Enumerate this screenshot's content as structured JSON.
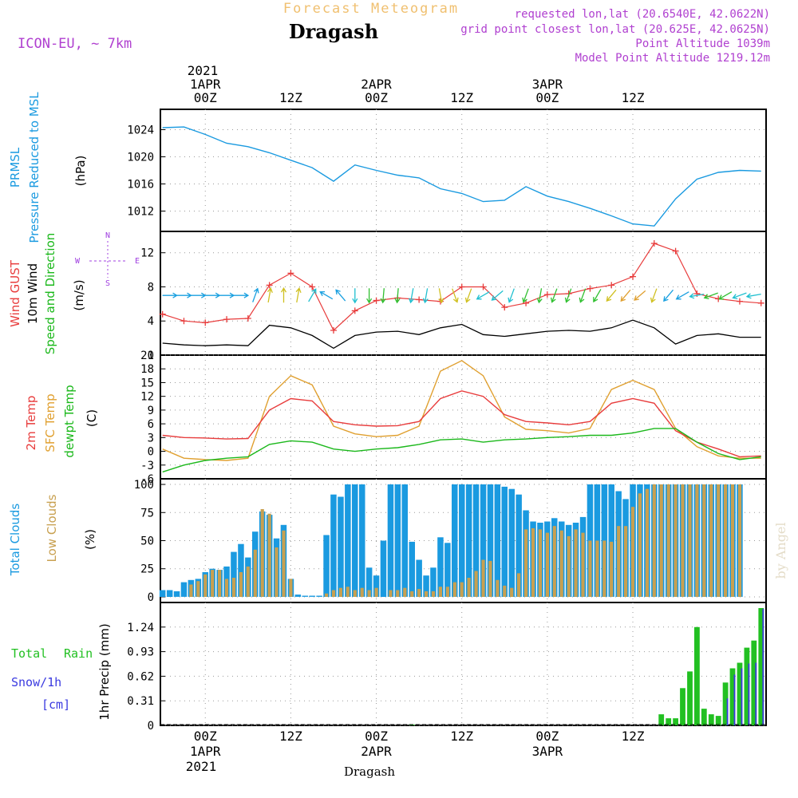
{
  "header": {
    "super_title": "Forecast Meteogram",
    "location": "Dragash",
    "model": "ICON-EU, ~ 7km",
    "requested": "requested lon,lat (20.6540E, 42.0622N)",
    "grid_point": "grid point closest lon,lat (20.625E, 42.0625N)",
    "point_alt": "Point Altitude 1039m",
    "model_alt": "Model Point Altitude 1219.12m"
  },
  "top_axis": {
    "year": "2021",
    "labels": [
      {
        "date": "1APR",
        "hour": "00Z"
      },
      {
        "date": "",
        "hour": "12Z"
      },
      {
        "date": "2APR",
        "hour": "00Z"
      },
      {
        "date": "",
        "hour": "12Z"
      },
      {
        "date": "3APR",
        "hour": "00Z"
      },
      {
        "date": "",
        "hour": "12Z"
      }
    ]
  },
  "bottom_axis": {
    "year": "2021",
    "labels": [
      {
        "hour": "00Z",
        "date": "1APR"
      },
      {
        "hour": "12Z",
        "date": ""
      },
      {
        "hour": "00Z",
        "date": "2APR"
      },
      {
        "hour": "12Z",
        "date": ""
      },
      {
        "hour": "00Z",
        "date": "3APR"
      },
      {
        "hour": "12Z",
        "date": ""
      }
    ],
    "footer": "Dragash"
  },
  "watermark": "by Angel",
  "colors": {
    "pressure": "#1a9ae0",
    "gust": "#e83c3c",
    "wind": "#000000",
    "dir": "#1bb81b",
    "t2m": "#e83c3c",
    "sfc": "#e0a030",
    "dew": "#1bb81b",
    "total_cloud": "#1a9ae0",
    "low_cloud": "#c8a050",
    "rain": "#22c022",
    "snow": "#3a3ae0",
    "compass": "#a040e0",
    "header_meta": "#b040d0",
    "super_title": "#f0c070"
  },
  "chart_data": [
    {
      "id": "pressure",
      "type": "line",
      "ylabel_lines": [
        "PRMSL",
        "Pressure Reduced to MSL"
      ],
      "unit": "(hPa)",
      "ylim": [
        1009,
        1027
      ],
      "yticks": [
        1012,
        1016,
        1020,
        1024
      ],
      "x_hours": [
        -6,
        -3,
        0,
        3,
        6,
        9,
        12,
        15,
        18,
        21,
        24,
        27,
        30,
        33,
        36,
        39,
        42,
        45,
        48,
        51,
        54,
        57,
        60,
        63,
        66,
        69,
        72,
        75,
        78
      ],
      "series": [
        {
          "name": "PRMSL",
          "values": [
            1024.3,
            1024.4,
            1023.3,
            1022.0,
            1021.5,
            1020.6,
            1019.5,
            1018.4,
            1016.4,
            1018.8,
            1018.0,
            1017.3,
            1016.9,
            1015.3,
            1014.6,
            1013.4,
            1013.6,
            1015.6,
            1014.2,
            1013.4,
            1012.4,
            1011.3,
            1010.1,
            1009.8,
            1013.8,
            1016.7,
            1017.7,
            1018.0,
            1017.9
          ]
        }
      ]
    },
    {
      "id": "wind",
      "type": "line",
      "ylabel_lines": [
        "Wind GUST",
        "10m Wind",
        "Speed and Direction"
      ],
      "unit": "(m/s)",
      "compass": [
        "N",
        "W",
        "E",
        "S"
      ],
      "ylim": [
        0,
        14.5
      ],
      "yticks": [
        0,
        4,
        8,
        12
      ],
      "x_hours": [
        -6,
        -3,
        0,
        3,
        6,
        9,
        12,
        15,
        18,
        21,
        24,
        27,
        30,
        33,
        36,
        39,
        42,
        45,
        48,
        51,
        54,
        57,
        60,
        63,
        66,
        69,
        72,
        75,
        78
      ],
      "series": [
        {
          "name": "Wind GUST",
          "values": [
            4.8,
            4.0,
            3.8,
            4.2,
            4.3,
            8.2,
            9.6,
            8.0,
            2.9,
            5.2,
            6.4,
            6.7,
            6.5,
            6.3,
            8.0,
            8.0,
            5.6,
            6.1,
            7.1,
            7.2,
            7.8,
            8.2,
            9.2,
            13.1,
            12.2,
            7.2,
            6.6,
            6.3,
            6.1
          ]
        },
        {
          "name": "10m Wind",
          "values": [
            1.4,
            1.2,
            1.1,
            1.2,
            1.1,
            3.5,
            3.2,
            2.3,
            0.8,
            2.3,
            2.7,
            2.8,
            2.4,
            3.2,
            3.6,
            2.4,
            2.2,
            2.5,
            2.8,
            2.9,
            2.8,
            3.2,
            4.1,
            3.2,
            1.3,
            2.3,
            2.5,
            2.1,
            2.1
          ]
        }
      ],
      "arrows": {
        "hours": [
          -5,
          -3,
          -1,
          1,
          3,
          5,
          7,
          9,
          11,
          13,
          15,
          17,
          19,
          21,
          23,
          25,
          27,
          29,
          31,
          33,
          35,
          37,
          39,
          41,
          43,
          45,
          47,
          49,
          51,
          53,
          55,
          57,
          59,
          61,
          63,
          65,
          67,
          69,
          71,
          73,
          75,
          77
        ],
        "dirs": [
          90,
          90,
          90,
          90,
          90,
          90,
          20,
          10,
          0,
          10,
          30,
          300,
          320,
          180,
          180,
          185,
          185,
          190,
          190,
          170,
          160,
          200,
          240,
          230,
          200,
          200,
          190,
          200,
          200,
          200,
          210,
          220,
          220,
          230,
          200,
          220,
          240,
          260,
          250,
          240,
          250,
          260
        ]
      }
    },
    {
      "id": "temp",
      "type": "line",
      "ylabel_lines": [
        "2m Temp",
        "SFC Temp",
        "dewpt Temp"
      ],
      "unit": "(C)",
      "ylim": [
        -6,
        21
      ],
      "yticks": [
        -6,
        -3,
        0,
        3,
        6,
        9,
        12,
        15,
        18,
        21
      ],
      "x_hours": [
        -6,
        -3,
        0,
        3,
        6,
        9,
        12,
        15,
        18,
        21,
        24,
        27,
        30,
        33,
        36,
        39,
        42,
        45,
        48,
        51,
        54,
        57,
        60,
        63,
        66,
        69,
        72,
        75,
        78
      ],
      "series": [
        {
          "name": "2m Temp",
          "values": [
            3.5,
            3.0,
            2.9,
            2.7,
            2.8,
            9.0,
            11.5,
            11.0,
            6.5,
            5.8,
            5.5,
            5.6,
            6.5,
            11.5,
            13.2,
            12.0,
            8.0,
            6.5,
            6.2,
            5.8,
            6.5,
            10.5,
            11.5,
            10.5,
            4.5,
            2.0,
            0.5,
            -1.2,
            -1.0
          ]
        },
        {
          "name": "SFC Temp",
          "values": [
            0.5,
            -1.5,
            -1.8,
            -2.0,
            -1.5,
            12.0,
            16.5,
            14.5,
            5.5,
            3.8,
            3.2,
            3.5,
            5.5,
            17.5,
            19.8,
            16.5,
            7.5,
            4.8,
            4.5,
            4.0,
            5.0,
            13.5,
            15.5,
            13.5,
            5.0,
            1.0,
            -1.0,
            -1.5,
            -1.5
          ]
        },
        {
          "name": "dewpt Temp",
          "values": [
            -4.5,
            -3.0,
            -2.0,
            -1.5,
            -1.2,
            1.5,
            2.3,
            2.0,
            0.5,
            0.0,
            0.5,
            0.8,
            1.5,
            2.5,
            2.7,
            2.0,
            2.5,
            2.7,
            3.0,
            3.2,
            3.5,
            3.5,
            4.0,
            5.0,
            5.0,
            2.0,
            -0.5,
            -1.8,
            -1.2
          ]
        }
      ]
    },
    {
      "id": "clouds",
      "type": "bar",
      "ylabel_lines": [
        "Total Clouds",
        "Low Clouds"
      ],
      "unit": "(%)",
      "ylim": [
        -5,
        105
      ],
      "yticks": [
        0,
        25,
        50,
        75,
        100
      ],
      "start_hour": -6,
      "step_hours": 1,
      "series": [
        {
          "name": "Total Clouds",
          "values": [
            6,
            6,
            5,
            13,
            15,
            16,
            22,
            25,
            24,
            27,
            40,
            47,
            35,
            58,
            76,
            73,
            52,
            64,
            16,
            2,
            1,
            1,
            1,
            55,
            91,
            89,
            100,
            100,
            100,
            26,
            19,
            50,
            100,
            100,
            100,
            49,
            33,
            19,
            26,
            53,
            48,
            100,
            100,
            100,
            100,
            100,
            100,
            100,
            98,
            96,
            91,
            77,
            67,
            66,
            67,
            70,
            67,
            64,
            66,
            71,
            100,
            100,
            100,
            100,
            94,
            87,
            100,
            100,
            100,
            100,
            100,
            100,
            100,
            100,
            100,
            100,
            100,
            100,
            100,
            100,
            100,
            100
          ]
        },
        {
          "name": "Low Clouds",
          "values": [
            0,
            0,
            0,
            0,
            11,
            14,
            20,
            24,
            24,
            16,
            17,
            22,
            27,
            42,
            78,
            74,
            44,
            59,
            16,
            0,
            0,
            0,
            0,
            3,
            6,
            8,
            9,
            6,
            8,
            6,
            8,
            0,
            6,
            6,
            8,
            5,
            7,
            5,
            5,
            9,
            9,
            13,
            13,
            17,
            23,
            33,
            32,
            15,
            10,
            8,
            21,
            60,
            61,
            60,
            57,
            63,
            59,
            54,
            60,
            57,
            50,
            50,
            50,
            49,
            63,
            63,
            80,
            92,
            96,
            100,
            100,
            100,
            100,
            100,
            100,
            100,
            100,
            100,
            100,
            100,
            100,
            100
          ]
        }
      ]
    },
    {
      "id": "precip",
      "type": "bar",
      "ylabel_lines": [
        "1hr Precip (mm)"
      ],
      "legend": [
        "Total",
        "Rain",
        "Snow/1h",
        "[cm]"
      ],
      "ylim": [
        0,
        1.55
      ],
      "yticks": [
        0,
        0.31,
        0.62,
        0.93,
        1.24
      ],
      "ytick_labels": [
        "0",
        "0.31",
        "0.62",
        "0.93",
        "1.24"
      ],
      "start_hour": -6,
      "step_hours": 1,
      "rain_hours": [
        29,
        64,
        65,
        66,
        67,
        68,
        69,
        70,
        71,
        72,
        73,
        74,
        75,
        76,
        77,
        78
      ],
      "rain_values": [
        0.01,
        0.14,
        0.09,
        0.09,
        0.47,
        0.68,
        1.24,
        0.21,
        0.14,
        0.12,
        0.54,
        0.72,
        0.79,
        0.98,
        1.07,
        1.48
      ],
      "snow_hours": [
        73,
        74,
        75,
        76,
        77,
        78
      ],
      "snow_values": [
        0.34,
        0.64,
        0.72,
        0.78,
        0.79,
        1.47
      ]
    }
  ]
}
